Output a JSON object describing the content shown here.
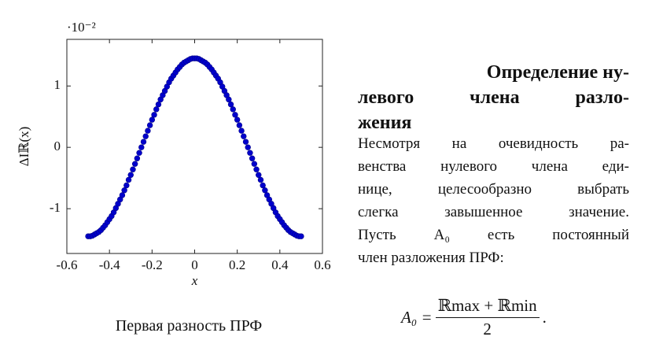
{
  "chart_data": {
    "type": "scatter",
    "multiplier": "·10⁻²",
    "ylabel": "ΔIℝ(x)",
    "xlabel": "x",
    "caption": "Первая разность ПРФ",
    "color": "#0000cc",
    "xlim": [
      -0.6,
      0.6
    ],
    "ylim": [
      -1.73,
      1.76
    ],
    "xticks": [
      -0.6,
      -0.4,
      -0.2,
      0,
      0.2,
      0.4,
      0.6
    ],
    "yticks": [
      -1,
      0,
      1
    ],
    "x": [
      -0.5,
      -0.49,
      -0.48,
      -0.47,
      -0.46,
      -0.45,
      -0.44,
      -0.43,
      -0.42,
      -0.41,
      -0.4,
      -0.39,
      -0.38,
      -0.37,
      -0.36,
      -0.35,
      -0.34,
      -0.33,
      -0.32,
      -0.31,
      -0.3,
      -0.29,
      -0.28,
      -0.27,
      -0.26,
      -0.25,
      -0.24,
      -0.23,
      -0.22,
      -0.21,
      -0.2,
      -0.19,
      -0.18,
      -0.17,
      -0.16,
      -0.15,
      -0.14,
      -0.13,
      -0.12,
      -0.11,
      -0.1,
      -0.09,
      -0.08,
      -0.07,
      -0.06,
      -0.05,
      -0.04,
      -0.03,
      -0.02,
      -0.01,
      0,
      0.01,
      0.02,
      0.03,
      0.04,
      0.05,
      0.06,
      0.07,
      0.08,
      0.09,
      0.1,
      0.11,
      0.12,
      0.13,
      0.14,
      0.15,
      0.16,
      0.17,
      0.18,
      0.19,
      0.2,
      0.21,
      0.22,
      0.23,
      0.24,
      0.25,
      0.26,
      0.27,
      0.28,
      0.29,
      0.3,
      0.31,
      0.32,
      0.33,
      0.34,
      0.35,
      0.36,
      0.37,
      0.38,
      0.39,
      0.4,
      0.41,
      0.42,
      0.43,
      0.44,
      0.45,
      0.46,
      0.47,
      0.48,
      0.49,
      0.5
    ],
    "values": [
      -1.45,
      -1.45,
      -1.44,
      -1.42,
      -1.4,
      -1.38,
      -1.35,
      -1.31,
      -1.27,
      -1.22,
      -1.17,
      -1.12,
      -1.06,
      -0.99,
      -0.92,
      -0.85,
      -0.78,
      -0.7,
      -0.62,
      -0.53,
      -0.45,
      -0.36,
      -0.27,
      -0.18,
      -0.09,
      0,
      0.09,
      0.18,
      0.27,
      0.36,
      0.45,
      0.53,
      0.62,
      0.7,
      0.78,
      0.85,
      0.92,
      0.99,
      1.06,
      1.12,
      1.17,
      1.22,
      1.27,
      1.31,
      1.35,
      1.38,
      1.4,
      1.42,
      1.44,
      1.45,
      1.45,
      1.45,
      1.44,
      1.42,
      1.4,
      1.38,
      1.35,
      1.31,
      1.27,
      1.22,
      1.17,
      1.12,
      1.06,
      0.99,
      0.92,
      0.85,
      0.78,
      0.7,
      0.62,
      0.53,
      0.45,
      0.36,
      0.27,
      0.18,
      0.09,
      0,
      -0.09,
      -0.18,
      -0.27,
      -0.36,
      -0.45,
      -0.53,
      -0.62,
      -0.7,
      -0.78,
      -0.85,
      -0.92,
      -0.99,
      -1.06,
      -1.12,
      -1.17,
      -1.22,
      -1.27,
      -1.31,
      -1.35,
      -1.38,
      -1.4,
      -1.42,
      -1.44,
      -1.45,
      -1.45
    ]
  },
  "document": {
    "heading_lines": [
      "Определение ну-",
      "левого члена разло-",
      "жения"
    ],
    "paragraph_lines": [
      "Несмотря на очевидность ра-",
      "венства нулевого члена еди-",
      "нице, целесообразно выбрать",
      "слегка завышенное значение.",
      "Пусть A₀ есть постоянный",
      "член разложения ПРФ:"
    ],
    "formula": {
      "lhs": "A₀ =",
      "numerator": "ℝmax + ℝmin",
      "denominator": "2",
      "end": "."
    }
  }
}
